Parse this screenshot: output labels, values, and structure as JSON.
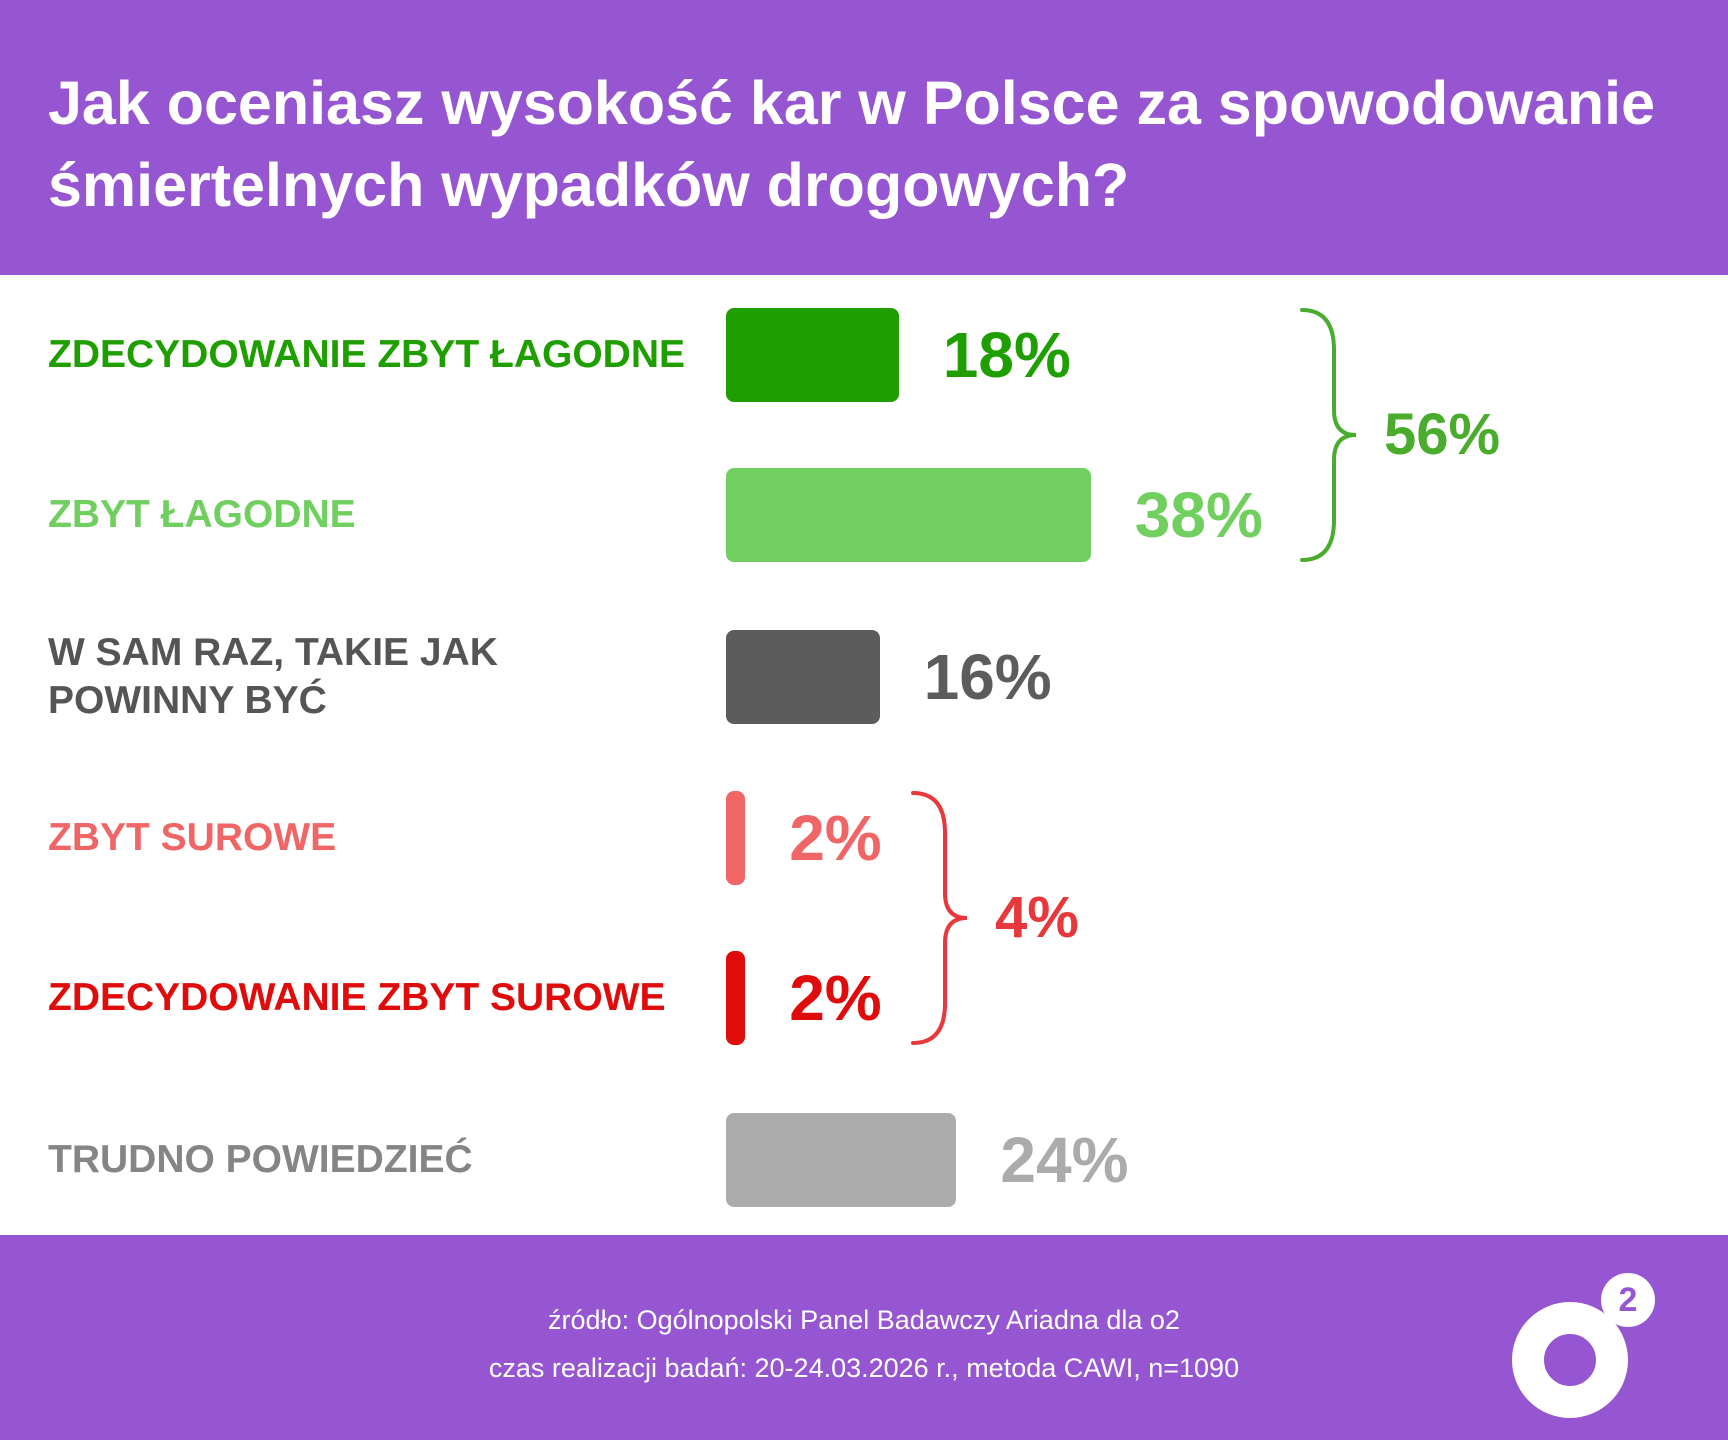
{
  "header": {
    "title": "Jak oceniasz wysokość kar w Polsce za spowodowanie śmiertelnych wypadków drogowych?"
  },
  "chart_data": {
    "type": "bar",
    "orientation": "horizontal",
    "title": "Jak oceniasz wysokość kar w Polsce za spowodowanie śmiertelnych wypadków drogowych?",
    "categories": [
      "ZDECYDOWANIE ZBYT ŁAGODNE",
      "ZBYT ŁAGODNE",
      "W SAM RAZ, TAKIE JAK\nPOWINNY BYĆ",
      "ZBYT SUROWE",
      "ZDECYDOWANIE ZBYT SUROWE",
      "TRUDNO POWIEDZIEĆ"
    ],
    "values": [
      18,
      38,
      16,
      2,
      2,
      24
    ],
    "value_labels": [
      "18%",
      "38%",
      "16%",
      "2%",
      "2%",
      "24%"
    ],
    "colors": [
      "#1f9e00",
      "#70cf5f",
      "#5c5c5c",
      "#f06565",
      "#e00b0b",
      "#ababab"
    ],
    "label_colors": [
      "#1f9e00",
      "#70cf5f",
      "#555555",
      "#f06565",
      "#e00b0b",
      "#858585"
    ],
    "groups": [
      {
        "members": [
          0,
          1
        ],
        "value": 56,
        "label": "56%",
        "color": "#4aac2c"
      },
      {
        "members": [
          3,
          4
        ],
        "value": 4,
        "label": "4%",
        "color": "#e8383c"
      }
    ],
    "unit": "%",
    "axis": "hidden",
    "grid": false,
    "legend": "none"
  },
  "footer": {
    "source_line1": "źródło: Ogólnopolski Panel Badawczy Ariadna dla o2",
    "source_line2": "czas realizacji badań: 20-24.03.2026 r., metoda CAWI, n=1090",
    "logo_superscript": "2"
  }
}
